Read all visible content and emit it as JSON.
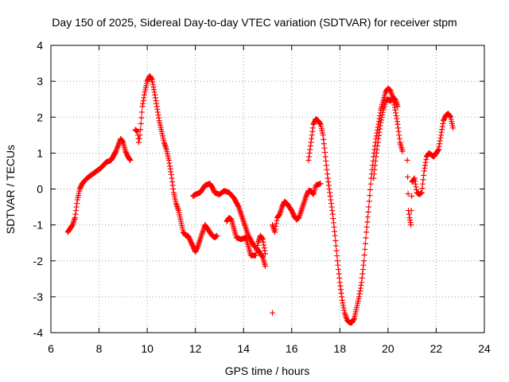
{
  "chart_data": {
    "type": "scatter",
    "title": "Day 150 of 2025, Sidereal Day-to-day VTEC variation (SDTVAR) for receiver stpm",
    "xlabel": "GPS time / hours",
    "ylabel": "SDTVAR / TECUs",
    "xlim": [
      6,
      24
    ],
    "ylim": [
      -4,
      4
    ],
    "xticks": [
      "6",
      "8",
      "10",
      "12",
      "14",
      "16",
      "18",
      "20",
      "22",
      "24"
    ],
    "yticks": [
      "-4",
      "-3",
      "-2",
      "-1",
      "0",
      "1",
      "2",
      "3",
      "4"
    ],
    "grid": true,
    "marker": "plus",
    "color": "#ff0000",
    "series": [
      {
        "name": "SDTVAR",
        "segments": [
          [
            [
              6.7,
              -1.2
            ],
            [
              6.8,
              -1.1
            ],
            [
              6.9,
              -1.0
            ],
            [
              7.0,
              -0.8
            ],
            [
              7.1,
              -0.3
            ],
            [
              7.2,
              0.0
            ],
            [
              7.3,
              0.15
            ],
            [
              7.5,
              0.3
            ],
            [
              7.7,
              0.4
            ],
            [
              7.9,
              0.5
            ],
            [
              8.1,
              0.6
            ],
            [
              8.3,
              0.75
            ],
            [
              8.5,
              0.8
            ],
            [
              8.7,
              1.05
            ],
            [
              8.9,
              1.4
            ],
            [
              9.0,
              1.3
            ],
            [
              9.1,
              1.05
            ],
            [
              9.2,
              0.9
            ],
            [
              9.3,
              0.8
            ]
          ],
          [
            [
              9.5,
              1.65
            ],
            [
              9.6,
              1.6
            ],
            [
              9.65,
              1.3
            ],
            [
              9.7,
              1.5
            ],
            [
              9.8,
              2.3
            ],
            [
              9.9,
              2.7
            ],
            [
              10.0,
              3.0
            ],
            [
              10.1,
              3.15
            ],
            [
              10.2,
              3.05
            ],
            [
              10.3,
              2.7
            ],
            [
              10.4,
              2.3
            ],
            [
              10.5,
              1.9
            ],
            [
              10.6,
              1.6
            ],
            [
              10.7,
              1.3
            ],
            [
              10.8,
              1.1
            ],
            [
              10.9,
              0.8
            ],
            [
              11.0,
              0.4
            ],
            [
              11.1,
              -0.1
            ],
            [
              11.2,
              -0.4
            ],
            [
              11.3,
              -0.6
            ],
            [
              11.4,
              -0.9
            ],
            [
              11.5,
              -1.2
            ],
            [
              11.6,
              -1.3
            ],
            [
              11.7,
              -1.3
            ],
            [
              11.8,
              -1.45
            ],
            [
              11.9,
              -1.6
            ],
            [
              12.0,
              -1.75
            ],
            [
              12.1,
              -1.6
            ],
            [
              12.2,
              -1.4
            ],
            [
              12.3,
              -1.2
            ],
            [
              12.4,
              -1.0
            ],
            [
              12.5,
              -1.1
            ],
            [
              12.6,
              -1.2
            ],
            [
              12.7,
              -1.3
            ],
            [
              12.8,
              -1.35
            ],
            [
              12.9,
              -1.3
            ]
          ],
          [
            [
              11.9,
              -0.2
            ],
            [
              12.0,
              -0.15
            ],
            [
              12.2,
              -0.1
            ],
            [
              12.4,
              0.1
            ],
            [
              12.6,
              0.15
            ],
            [
              12.7,
              0.05
            ],
            [
              12.8,
              -0.1
            ],
            [
              13.0,
              -0.15
            ],
            [
              13.2,
              -0.05
            ],
            [
              13.4,
              -0.1
            ],
            [
              13.6,
              -0.25
            ],
            [
              13.8,
              -0.5
            ],
            [
              14.0,
              -0.9
            ],
            [
              14.2,
              -1.3
            ],
            [
              14.4,
              -1.55
            ],
            [
              14.6,
              -1.7
            ],
            [
              14.8,
              -1.9
            ],
            [
              14.9,
              -2.15
            ]
          ],
          [
            [
              13.3,
              -0.9
            ],
            [
              13.4,
              -0.8
            ],
            [
              13.5,
              -0.85
            ],
            [
              13.6,
              -1.1
            ],
            [
              13.7,
              -1.35
            ],
            [
              13.9,
              -1.4
            ],
            [
              14.1,
              -1.35
            ],
            [
              14.2,
              -1.6
            ],
            [
              14.3,
              -1.85
            ],
            [
              14.5,
              -1.85
            ],
            [
              14.6,
              -1.5
            ],
            [
              14.7,
              -1.3
            ],
            [
              14.8,
              -1.4
            ],
            [
              14.9,
              -1.8
            ]
          ],
          [
            [
              15.2,
              -3.45
            ]
          ],
          [
            [
              15.2,
              -1.0
            ],
            [
              15.3,
              -1.2
            ],
            [
              15.4,
              -0.8
            ],
            [
              15.5,
              -0.7
            ],
            [
              15.6,
              -0.5
            ],
            [
              15.7,
              -0.35
            ],
            [
              15.8,
              -0.4
            ],
            [
              15.9,
              -0.5
            ],
            [
              16.0,
              -0.6
            ],
            [
              16.1,
              -0.75
            ],
            [
              16.2,
              -0.85
            ],
            [
              16.3,
              -0.8
            ],
            [
              16.4,
              -0.6
            ],
            [
              16.5,
              -0.4
            ],
            [
              16.6,
              -0.2
            ],
            [
              16.7,
              -0.05
            ],
            [
              16.8,
              -0.05
            ],
            [
              16.9,
              -0.15
            ],
            [
              17.0,
              0.1
            ],
            [
              17.2,
              0.15
            ]
          ],
          [
            [
              16.7,
              0.8
            ],
            [
              16.8,
              1.3
            ],
            [
              16.9,
              1.8
            ],
            [
              17.0,
              1.95
            ],
            [
              17.1,
              1.9
            ],
            [
              17.2,
              1.8
            ],
            [
              17.3,
              1.5
            ],
            [
              17.4,
              0.9
            ],
            [
              17.5,
              0.3
            ],
            [
              17.6,
              -0.2
            ],
            [
              17.7,
              -0.7
            ],
            [
              17.8,
              -1.3
            ],
            [
              17.9,
              -2.0
            ],
            [
              18.0,
              -2.6
            ],
            [
              18.1,
              -3.1
            ],
            [
              18.2,
              -3.45
            ],
            [
              18.3,
              -3.65
            ],
            [
              18.4,
              -3.72
            ],
            [
              18.5,
              -3.72
            ],
            [
              18.6,
              -3.6
            ],
            [
              18.7,
              -3.3
            ],
            [
              18.8,
              -3.0
            ],
            [
              18.9,
              -2.6
            ],
            [
              19.0,
              -2.0
            ],
            [
              19.1,
              -1.2
            ],
            [
              19.2,
              -0.5
            ],
            [
              19.3,
              0.3
            ],
            [
              19.4,
              0.9
            ],
            [
              19.5,
              1.4
            ],
            [
              19.6,
              1.8
            ],
            [
              19.7,
              2.2
            ],
            [
              19.8,
              2.45
            ],
            [
              19.9,
              2.7
            ],
            [
              20.0,
              2.8
            ],
            [
              20.1,
              2.75
            ],
            [
              20.2,
              2.55
            ],
            [
              20.3,
              2.2
            ],
            [
              20.4,
              1.8
            ],
            [
              20.5,
              1.3
            ],
            [
              20.6,
              1.05
            ]
          ],
          [
            [
              19.4,
              0.3
            ],
            [
              19.5,
              0.9
            ],
            [
              19.6,
              1.4
            ],
            [
              19.7,
              1.85
            ],
            [
              19.8,
              2.2
            ],
            [
              19.9,
              2.45
            ],
            [
              20.0,
              2.5
            ],
            [
              20.1,
              2.45
            ],
            [
              20.2,
              2.55
            ],
            [
              20.3,
              2.5
            ],
            [
              20.4,
              2.3
            ]
          ],
          [
            [
              20.8,
              0.8
            ],
            [
              20.85,
              -0.6
            ],
            [
              20.9,
              -0.8
            ],
            [
              20.95,
              -1.0
            ],
            [
              21.0,
              0.2
            ],
            [
              21.1,
              0.3
            ],
            [
              21.2,
              -0.1
            ],
            [
              21.3,
              -0.15
            ],
            [
              21.4,
              -0.1
            ],
            [
              21.5,
              0.5
            ],
            [
              21.6,
              0.9
            ],
            [
              21.7,
              1.0
            ],
            [
              21.8,
              0.95
            ],
            [
              21.9,
              0.9
            ],
            [
              22.0,
              1.0
            ],
            [
              22.1,
              1.1
            ],
            [
              22.2,
              1.5
            ],
            [
              22.3,
              1.9
            ],
            [
              22.4,
              2.05
            ],
            [
              22.5,
              2.1
            ],
            [
              22.6,
              2.0
            ],
            [
              22.7,
              1.7
            ]
          ]
        ]
      }
    ]
  }
}
